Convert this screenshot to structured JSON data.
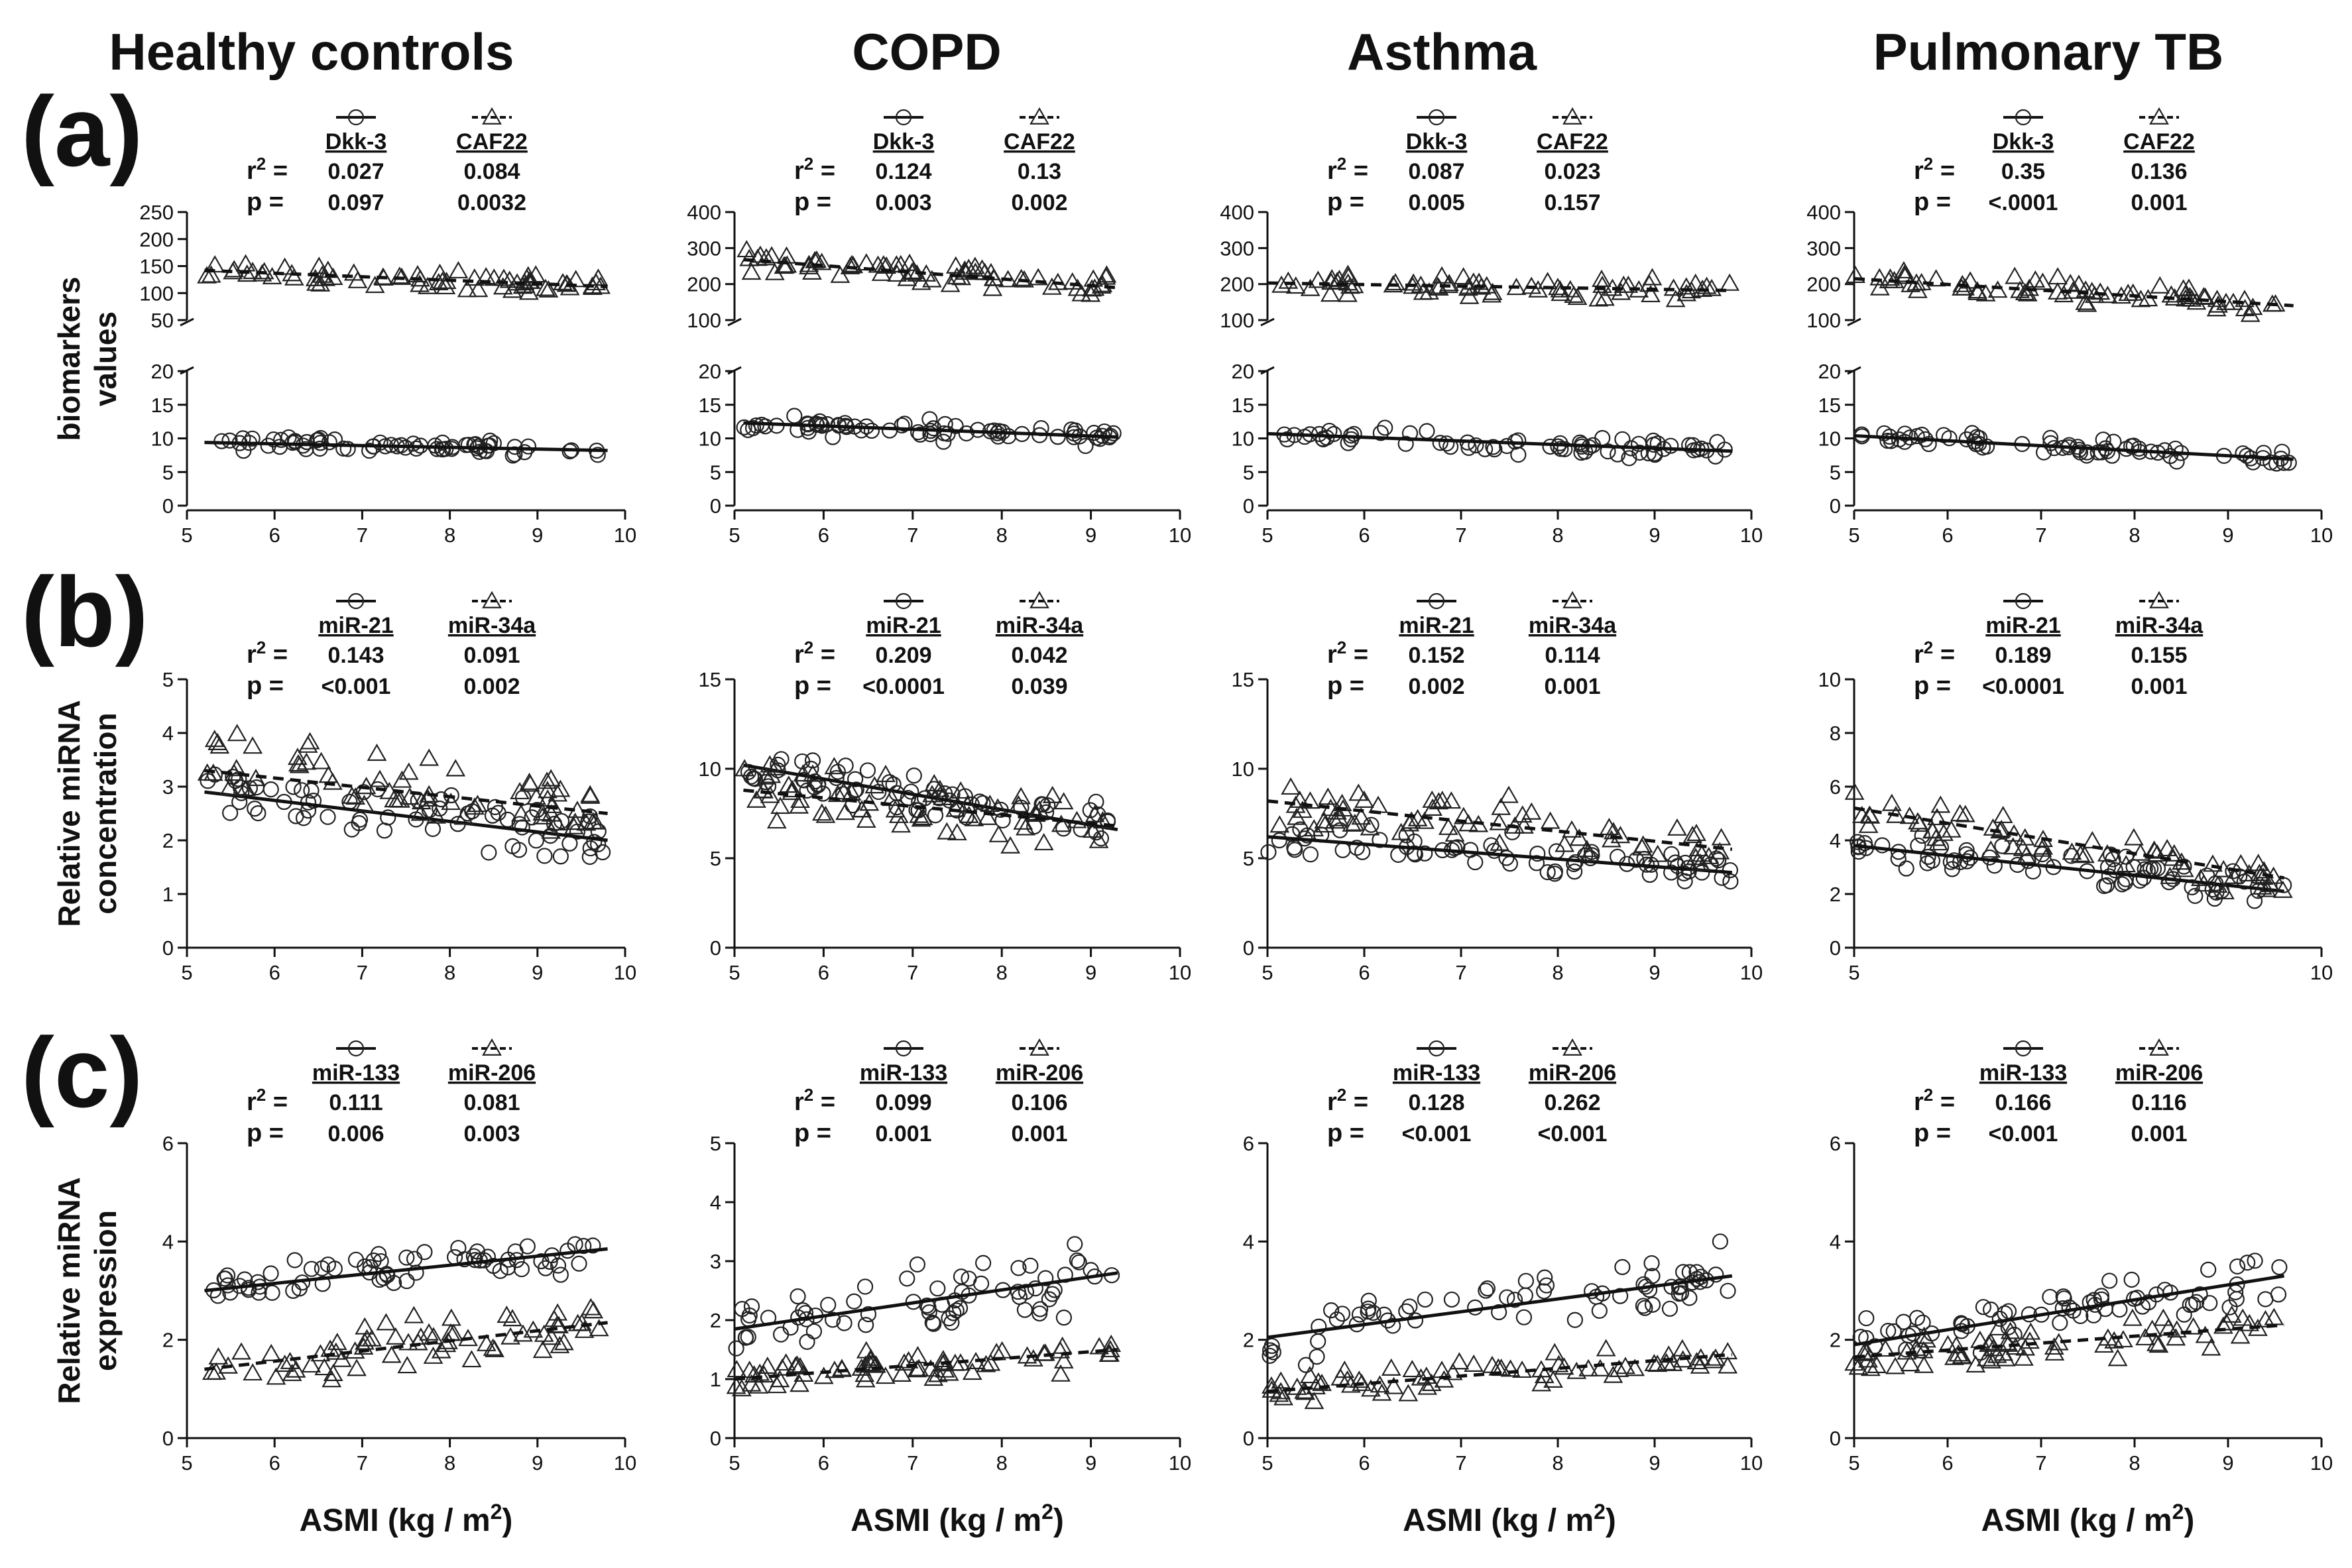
{
  "figure": {
    "columns": [
      "Healthy controls",
      "COPD",
      "Asthma",
      "Pulmonary TB"
    ],
    "row_labels": [
      "(a)",
      "(b)",
      "(c)"
    ],
    "x_axis_label": "ASMI (kg / m",
    "x_axis_label_sup": "2",
    "x_axis_label_end": ")"
  },
  "chart_data": [
    {
      "type": "scatter",
      "id": "a-healthy",
      "row": "a",
      "col": 0,
      "ylabel": "biomarkers values",
      "broken_axis": true,
      "xlim": [
        5,
        10
      ],
      "xticks": [
        5,
        6,
        7,
        8,
        9,
        10
      ],
      "upper": {
        "ylim": [
          50,
          250
        ],
        "yticks": [
          50,
          100,
          150,
          200,
          250
        ]
      },
      "lower": {
        "ylim": [
          0,
          20
        ],
        "yticks": [
          0,
          5,
          10,
          15,
          20
        ]
      },
      "series": [
        {
          "name": "Dkk-3",
          "marker": "circle",
          "line": "solid",
          "panel": "lower",
          "r2": "0.027",
          "p": "0.097",
          "fit": [
            [
              5.2,
              9.4
            ],
            [
              9.8,
              8.2
            ]
          ],
          "center": 9,
          "spread": 1.5
        },
        {
          "name": "CAF22",
          "marker": "triangle",
          "line": "dashed",
          "panel": "upper",
          "r2": "0.084",
          "p": "0.0032",
          "fit": [
            [
              5.2,
              142
            ],
            [
              9.8,
              112
            ]
          ],
          "center": 125,
          "spread": 25
        }
      ]
    },
    {
      "type": "scatter",
      "id": "a-copd",
      "row": "a",
      "col": 1,
      "broken_axis": true,
      "xlim": [
        5,
        10
      ],
      "xticks": [
        5,
        6,
        7,
        8,
        9,
        10
      ],
      "upper": {
        "ylim": [
          100,
          400
        ],
        "yticks": [
          100,
          200,
          300,
          400
        ]
      },
      "lower": {
        "ylim": [
          0,
          20
        ],
        "yticks": [
          0,
          5,
          10,
          15,
          20
        ]
      },
      "series": [
        {
          "name": "Dkk-3",
          "marker": "circle",
          "line": "solid",
          "panel": "lower",
          "r2": "0.124",
          "p": "0.003",
          "fit": [
            [
              5.1,
              12.3
            ],
            [
              9.3,
              10.2
            ]
          ],
          "center": 11,
          "spread": 2
        },
        {
          "name": "CAF22",
          "marker": "triangle",
          "line": "dashed",
          "panel": "upper",
          "r2": "0.13",
          "p": "0.002",
          "fit": [
            [
              5.1,
              268
            ],
            [
              9.3,
              190
            ]
          ],
          "center": 225,
          "spread": 50
        }
      ]
    },
    {
      "type": "scatter",
      "id": "a-asthma",
      "row": "a",
      "col": 2,
      "broken_axis": true,
      "xlim": [
        5,
        10
      ],
      "xticks": [
        5,
        6,
        7,
        8,
        9,
        10
      ],
      "upper": {
        "ylim": [
          100,
          400
        ],
        "yticks": [
          100,
          200,
          300,
          400
        ]
      },
      "lower": {
        "ylim": [
          0,
          20
        ],
        "yticks": [
          0,
          5,
          10,
          15,
          20
        ]
      },
      "series": [
        {
          "name": "Dkk-3",
          "marker": "circle",
          "line": "solid",
          "panel": "lower",
          "r2": "0.087",
          "p": "0.005",
          "fit": [
            [
              5,
              10.7
            ],
            [
              9.8,
              8.1
            ]
          ],
          "center": 9.5,
          "spread": 2
        },
        {
          "name": "CAF22",
          "marker": "triangle",
          "line": "dashed",
          "panel": "upper",
          "r2": "0.023",
          "p": "0.157",
          "fit": [
            [
              5,
              203
            ],
            [
              9.8,
              182
            ]
          ],
          "center": 190,
          "spread": 40
        }
      ]
    },
    {
      "type": "scatter",
      "id": "a-tb",
      "row": "a",
      "col": 3,
      "broken_axis": true,
      "xlim": [
        5,
        10
      ],
      "xticks": [
        5,
        6,
        7,
        8,
        9,
        10
      ],
      "upper": {
        "ylim": [
          100,
          400
        ],
        "yticks": [
          100,
          200,
          300,
          400
        ]
      },
      "lower": {
        "ylim": [
          0,
          20
        ],
        "yticks": [
          0,
          5,
          10,
          15,
          20
        ]
      },
      "series": [
        {
          "name": "Dkk-3",
          "marker": "circle",
          "line": "solid",
          "panel": "lower",
          "r2": "0.35",
          "p": "<.0001",
          "fit": [
            [
              5,
              10.4
            ],
            [
              9.7,
              6.9
            ]
          ],
          "center": 8.5,
          "spread": 1.8
        },
        {
          "name": "CAF22",
          "marker": "triangle",
          "line": "dashed",
          "panel": "upper",
          "r2": "0.136",
          "p": "0.001",
          "fit": [
            [
              5,
              215
            ],
            [
              9.7,
              140
            ]
          ],
          "center": 180,
          "spread": 45
        }
      ]
    },
    {
      "type": "scatter",
      "id": "b-healthy",
      "row": "b",
      "col": 0,
      "ylabel": "Relative miRNA concentration",
      "xlim": [
        5,
        10
      ],
      "xticks": [
        5,
        6,
        7,
        8,
        9,
        10
      ],
      "ylim": [
        0,
        5
      ],
      "yticks": [
        0,
        1,
        2,
        3,
        4,
        5
      ],
      "series": [
        {
          "name": "miR-21",
          "marker": "circle",
          "line": "solid",
          "r2": "0.143",
          "p": "<0.001",
          "fit": [
            [
              5.2,
              2.9
            ],
            [
              9.8,
              2.0
            ]
          ],
          "center": 2.5,
          "spread": 0.8
        },
        {
          "name": "miR-34a",
          "marker": "triangle",
          "line": "dashed",
          "r2": "0.091",
          "p": "0.002",
          "fit": [
            [
              5.2,
              3.3
            ],
            [
              9.8,
              2.5
            ]
          ],
          "center": 2.8,
          "spread": 1.0
        }
      ]
    },
    {
      "type": "scatter",
      "id": "b-copd",
      "row": "b",
      "col": 1,
      "xlim": [
        5,
        10
      ],
      "xticks": [
        5,
        6,
        7,
        8,
        9,
        10
      ],
      "ylim": [
        0,
        15
      ],
      "yticks": [
        0,
        5,
        10,
        15
      ],
      "series": [
        {
          "name": "miR-21",
          "marker": "circle",
          "line": "solid",
          "r2": "0.209",
          "p": "<0.0001",
          "fit": [
            [
              5.1,
              10.2
            ],
            [
              9.3,
              6.6
            ]
          ],
          "center": 8,
          "spread": 2
        },
        {
          "name": "miR-34a",
          "marker": "triangle",
          "line": "dashed",
          "r2": "0.042",
          "p": "0.039",
          "fit": [
            [
              5.1,
              8.8
            ],
            [
              9.3,
              6.8
            ]
          ],
          "center": 7.5,
          "spread": 2.5
        }
      ]
    },
    {
      "type": "scatter",
      "id": "b-asthma",
      "row": "b",
      "col": 2,
      "xlim": [
        5,
        10
      ],
      "xticks": [
        5,
        6,
        7,
        8,
        9,
        10
      ],
      "ylim": [
        0,
        15
      ],
      "yticks": [
        0,
        5,
        10,
        15
      ],
      "series": [
        {
          "name": "miR-21",
          "marker": "circle",
          "line": "solid",
          "r2": "0.152",
          "p": "0.002",
          "fit": [
            [
              5,
              6.2
            ],
            [
              9.8,
              4.2
            ]
          ],
          "center": 5,
          "spread": 1.5
        },
        {
          "name": "miR-34a",
          "marker": "triangle",
          "line": "dashed",
          "r2": "0.114",
          "p": "0.001",
          "fit": [
            [
              5,
              8.2
            ],
            [
              9.8,
              5.5
            ]
          ],
          "center": 6.5,
          "spread": 2
        }
      ]
    },
    {
      "type": "scatter",
      "id": "b-tb",
      "row": "b",
      "col": 3,
      "xlim": [
        5,
        10
      ],
      "xticks": [
        5,
        10
      ],
      "ylim": [
        0,
        10
      ],
      "yticks": [
        0,
        2,
        4,
        6,
        8,
        10
      ],
      "series": [
        {
          "name": "miR-21",
          "marker": "circle",
          "line": "solid",
          "r2": "0.189",
          "p": "<0.0001",
          "fit": [
            [
              5,
              3.8
            ],
            [
              9.6,
              2.1
            ]
          ],
          "center": 3,
          "spread": 0.9
        },
        {
          "name": "miR-34a",
          "marker": "triangle",
          "line": "dashed",
          "r2": "0.155",
          "p": "0.001",
          "fit": [
            [
              5,
              5.2
            ],
            [
              9.6,
              2.6
            ]
          ],
          "center": 3.8,
          "spread": 1.4
        }
      ]
    },
    {
      "type": "scatter",
      "id": "c-healthy",
      "row": "c",
      "col": 0,
      "ylabel": "Relative miRNA expression",
      "xlim": [
        5,
        10
      ],
      "xticks": [
        5,
        6,
        7,
        8,
        9,
        10
      ],
      "ylim": [
        0,
        6
      ],
      "yticks": [
        0,
        2,
        4,
        6
      ],
      "series": [
        {
          "name": "miR-133",
          "marker": "circle",
          "line": "solid",
          "r2": "0.111",
          "p": "0.006",
          "fit": [
            [
              5.2,
              3.0
            ],
            [
              9.8,
              3.85
            ]
          ],
          "center": 3.4,
          "spread": 0.6
        },
        {
          "name": "miR-206",
          "marker": "triangle",
          "line": "dashed",
          "r2": "0.081",
          "p": "0.003",
          "fit": [
            [
              5.2,
              1.4
            ],
            [
              9.8,
              2.35
            ]
          ],
          "center": 1.8,
          "spread": 0.8
        }
      ]
    },
    {
      "type": "scatter",
      "id": "c-copd",
      "row": "c",
      "col": 1,
      "xlim": [
        5,
        10
      ],
      "xticks": [
        5,
        6,
        7,
        8,
        9,
        10
      ],
      "ylim": [
        0,
        5
      ],
      "yticks": [
        0,
        1,
        2,
        3,
        4,
        5
      ],
      "series": [
        {
          "name": "miR-133",
          "marker": "circle",
          "line": "solid",
          "r2": "0.099",
          "p": "0.001",
          "fit": [
            [
              5,
              1.85
            ],
            [
              9.3,
              2.8
            ]
          ],
          "center": 2.3,
          "spread": 0.8
        },
        {
          "name": "miR-206",
          "marker": "triangle",
          "line": "dashed",
          "r2": "0.106",
          "p": "0.001",
          "fit": [
            [
              5,
              1.0
            ],
            [
              9.3,
              1.5
            ]
          ],
          "center": 1.2,
          "spread": 0.4
        }
      ]
    },
    {
      "type": "scatter",
      "id": "c-asthma",
      "row": "c",
      "col": 2,
      "xlim": [
        5,
        10
      ],
      "xticks": [
        5,
        6,
        7,
        8,
        9,
        10
      ],
      "ylim": [
        0,
        6
      ],
      "yticks": [
        0,
        2,
        4,
        6
      ],
      "series": [
        {
          "name": "miR-133",
          "marker": "circle",
          "line": "solid",
          "r2": "0.128",
          "p": "<0.001",
          "fit": [
            [
              5,
              2.05
            ],
            [
              9.8,
              3.3
            ]
          ],
          "center": 2.7,
          "spread": 0.9
        },
        {
          "name": "miR-206",
          "marker": "triangle",
          "line": "dashed",
          "r2": "0.262",
          "p": "<0.001",
          "fit": [
            [
              5,
              0.95
            ],
            [
              9.8,
              1.7
            ]
          ],
          "center": 1.4,
          "spread": 0.4
        }
      ]
    },
    {
      "type": "scatter",
      "id": "c-tb",
      "row": "c",
      "col": 3,
      "xlim": [
        5,
        10
      ],
      "xticks": [
        5,
        6,
        7,
        8,
        9,
        10
      ],
      "ylim": [
        0,
        6
      ],
      "yticks": [
        0,
        2,
        4,
        6
      ],
      "series": [
        {
          "name": "miR-133",
          "marker": "circle",
          "line": "solid",
          "r2": "0.166",
          "p": "<0.001",
          "fit": [
            [
              5,
              1.9
            ],
            [
              9.6,
              3.3
            ]
          ],
          "center": 2.5,
          "spread": 0.8
        },
        {
          "name": "miR-206",
          "marker": "triangle",
          "line": "dashed",
          "r2": "0.116",
          "p": "0.001",
          "fit": [
            [
              5,
              1.65
            ],
            [
              9.6,
              2.3
            ]
          ],
          "center": 1.9,
          "spread": 0.5
        }
      ]
    }
  ]
}
